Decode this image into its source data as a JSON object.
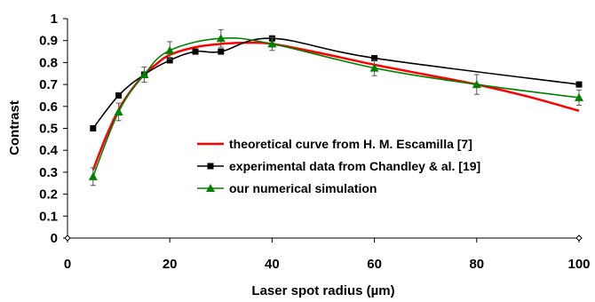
{
  "chart_data": {
    "type": "line",
    "xlabel": "Laser spot radius (µm)",
    "ylabel": "Contrast",
    "xlim": [
      0,
      100
    ],
    "ylim": [
      0,
      1
    ],
    "xticks": [
      0,
      20,
      40,
      60,
      80,
      100
    ],
    "yticks": [
      0,
      0.1,
      0.2,
      0.3,
      0.4,
      0.5,
      0.6,
      0.7,
      0.8,
      0.9,
      1
    ],
    "grid": false,
    "legend_position": "center-right",
    "series": [
      {
        "name": "theoretical curve from H. M. Escamilla [7]",
        "color": "#ff0000",
        "marker": "none",
        "x": [
          5,
          7.5,
          10,
          12.5,
          15,
          17.5,
          20,
          25,
          30,
          35,
          40,
          50,
          60,
          70,
          80,
          90,
          100
        ],
        "y": [
          0.31,
          0.46,
          0.585,
          0.675,
          0.745,
          0.795,
          0.835,
          0.87,
          0.885,
          0.89,
          0.885,
          0.84,
          0.79,
          0.745,
          0.7,
          0.645,
          0.58
        ]
      },
      {
        "name": "experimental data from Chandley & al. [19]",
        "color": "#000000",
        "marker": "square",
        "x": [
          5,
          10,
          15,
          20,
          25,
          30,
          40,
          60,
          100
        ],
        "y": [
          0.5,
          0.65,
          0.745,
          0.81,
          0.85,
          0.85,
          0.91,
          0.82,
          0.7
        ]
      },
      {
        "name": "our numerical simulation",
        "color": "#008000",
        "marker": "triangle",
        "x": [
          5,
          10,
          15,
          20,
          30,
          40,
          60,
          80,
          100
        ],
        "y": [
          0.28,
          0.575,
          0.745,
          0.855,
          0.91,
          0.885,
          0.775,
          0.7,
          0.64
        ],
        "error": [
          0.04,
          0.04,
          0.035,
          0.04,
          0.04,
          0.03,
          0.035,
          0.045,
          0.035
        ]
      }
    ]
  }
}
